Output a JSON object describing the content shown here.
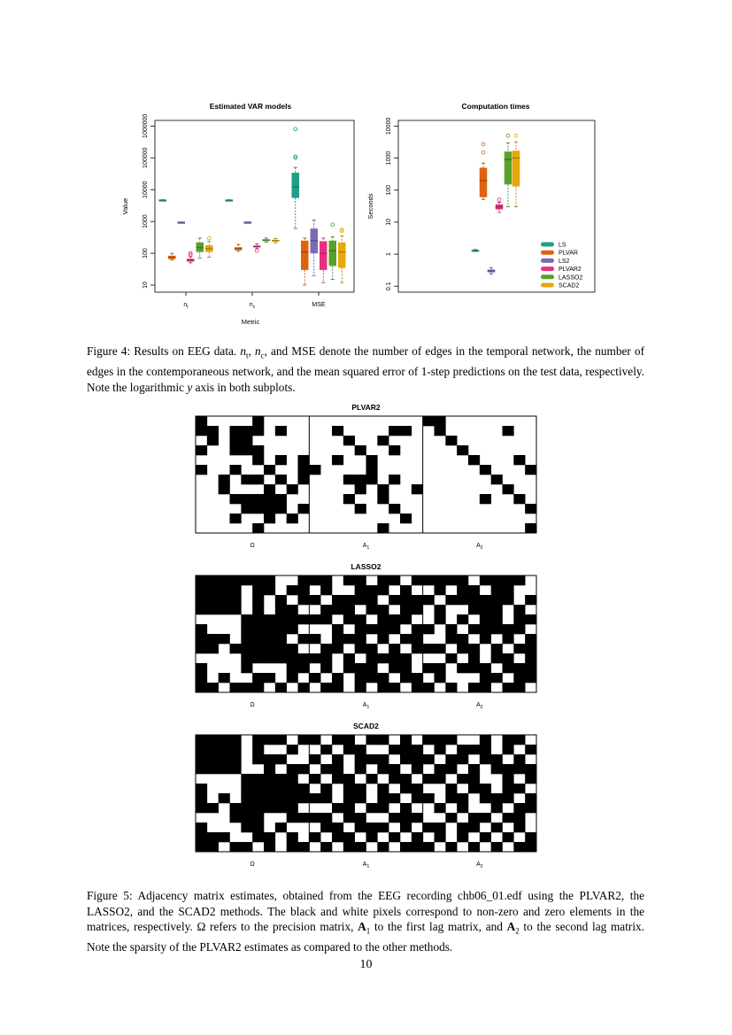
{
  "figure4": {
    "chart_data": [
      {
        "type": "box",
        "title": "Estimated VAR models",
        "xlabel": "Metric",
        "ylabel": "Value",
        "yscale": "log",
        "ylim": [
          6,
          1500000
        ],
        "yticks": [
          {
            "value": 10,
            "label": "10"
          },
          {
            "value": 100,
            "label": "100"
          },
          {
            "value": 1000,
            "label": "1000"
          },
          {
            "value": 10000,
            "label": "10000"
          },
          {
            "value": 100000,
            "label": "100000"
          },
          {
            "value": 1000000,
            "label": "1000000"
          }
        ],
        "groups": [
          {
            "label_main": "n",
            "label_sub": "t",
            "boxes": [
              {
                "method": "LS",
                "median": 4700,
                "q1": 4600,
                "q3": 4800,
                "whisker_low": 4600,
                "whisker_high": 4800,
                "outliers": []
              },
              {
                "method": "PLVAR",
                "median": 75,
                "q1": 66,
                "q3": 84,
                "whisker_low": 62,
                "whisker_high": 100,
                "outliers": []
              },
              {
                "method": "LS2",
                "median": 950,
                "q1": 940,
                "q3": 960,
                "whisker_low": 940,
                "whisker_high": 960,
                "outliers": []
              },
              {
                "method": "PLVAR2",
                "median": 62,
                "q1": 55,
                "q3": 67,
                "whisker_low": 50,
                "whisker_high": 78,
                "outliers": [
                  90,
                  100
                ]
              },
              {
                "method": "LASSO2",
                "median": 150,
                "q1": 110,
                "q3": 220,
                "whisker_low": 70,
                "whisker_high": 300,
                "outliers": []
              },
              {
                "method": "SCAD2",
                "median": 140,
                "q1": 110,
                "q3": 180,
                "whisker_low": 75,
                "whisker_high": 240,
                "outliers": [
                  300
                ]
              }
            ]
          },
          {
            "label_main": "n",
            "label_sub": "c",
            "boxes": [
              {
                "method": "LS",
                "median": 4700,
                "q1": 4600,
                "q3": 4800,
                "whisker_low": 4600,
                "whisker_high": 4800,
                "outliers": []
              },
              {
                "method": "PLVAR",
                "median": 140,
                "q1": 125,
                "q3": 155,
                "whisker_low": 115,
                "whisker_high": 190,
                "outliers": []
              },
              {
                "method": "LS2",
                "median": 950,
                "q1": 940,
                "q3": 960,
                "whisker_low": 940,
                "whisker_high": 960,
                "outliers": []
              },
              {
                "method": "PLVAR2",
                "median": 165,
                "q1": 155,
                "q3": 175,
                "whisker_low": 145,
                "whisker_high": 200,
                "outliers": [
                  120
                ]
              },
              {
                "method": "LASSO2",
                "median": 260,
                "q1": 245,
                "q3": 275,
                "whisker_low": 225,
                "whisker_high": 300,
                "outliers": []
              },
              {
                "method": "SCAD2",
                "median": 250,
                "q1": 235,
                "q3": 265,
                "whisker_low": 215,
                "whisker_high": 290,
                "outliers": []
              }
            ]
          },
          {
            "label_main": "MSE",
            "label_sub": "",
            "boxes": [
              {
                "method": "LS",
                "median": 12000,
                "q1": 5500,
                "q3": 34000,
                "whisker_low": 600,
                "whisker_high": 50000,
                "outliers": [
                  100000,
                  110000,
                  800000
                ]
              },
              {
                "method": "PLVAR",
                "median": 110,
                "q1": 30,
                "q3": 250,
                "whisker_low": 10,
                "whisker_high": 300,
                "outliers": []
              },
              {
                "method": "LS2",
                "median": 250,
                "q1": 100,
                "q3": 600,
                "whisker_low": 20,
                "whisker_high": 1100,
                "outliers": []
              },
              {
                "method": "PLVAR2",
                "median": 100,
                "q1": 30,
                "q3": 240,
                "whisker_low": 12,
                "whisker_high": 300,
                "outliers": []
              },
              {
                "method": "LASSO2",
                "median": 120,
                "q1": 40,
                "q3": 250,
                "whisker_low": 15,
                "whisker_high": 330,
                "outliers": [
                  800
                ]
              },
              {
                "method": "SCAD2",
                "median": 110,
                "q1": 35,
                "q3": 220,
                "whisker_low": 12,
                "whisker_high": 350,
                "outliers": [
                  500,
                  550
                ]
              }
            ]
          }
        ]
      },
      {
        "type": "box",
        "title": "Computation times",
        "xlabel": "",
        "ylabel": "Seconds",
        "yscale": "log",
        "ylim": [
          0.065,
          15000
        ],
        "yticks": [
          {
            "value": 0.1,
            "label": "0.1"
          },
          {
            "value": 1,
            "label": "1"
          },
          {
            "value": 10,
            "label": "10"
          },
          {
            "value": 100,
            "label": "100"
          },
          {
            "value": 1000,
            "label": "1000"
          },
          {
            "value": 10000,
            "label": "10000"
          }
        ],
        "boxes": [
          {
            "method": "LS",
            "median": 1.3,
            "q1": 1.25,
            "q3": 1.35,
            "whisker_low": 1.2,
            "whisker_high": 1.4,
            "outliers": []
          },
          {
            "method": "PLVAR",
            "median": 200,
            "q1": 60,
            "q3": 500,
            "whisker_low": 50,
            "whisker_high": 700,
            "outliers": [
              1500,
              2700
            ]
          },
          {
            "method": "LS2",
            "median": 0.3,
            "q1": 0.27,
            "q3": 0.33,
            "whisker_low": 0.24,
            "whisker_high": 0.38,
            "outliers": []
          },
          {
            "method": "PLVAR2",
            "median": 30,
            "q1": 25,
            "q3": 36,
            "whisker_low": 20,
            "whisker_high": 42,
            "outliers": [
              50
            ]
          },
          {
            "method": "LASSO2",
            "median": 900,
            "q1": 150,
            "q3": 1600,
            "whisker_low": 30,
            "whisker_high": 3000,
            "outliers": [
              5000
            ]
          },
          {
            "method": "SCAD2",
            "median": 1000,
            "q1": 130,
            "q3": 1700,
            "whisker_low": 30,
            "whisker_high": 3200,
            "outliers": [
              5000
            ]
          }
        ],
        "legend_position": "bottom-right",
        "legend": [
          {
            "name": "LS",
            "color": "#1f9e89"
          },
          {
            "name": "PLVAR",
            "color": "#e0620d"
          },
          {
            "name": "LS2",
            "color": "#7b6bb5"
          },
          {
            "name": "PLVAR2",
            "color": "#e6307f"
          },
          {
            "name": "LASSO2",
            "color": "#5aa02c"
          },
          {
            "name": "SCAD2",
            "color": "#e6a80b"
          }
        ]
      }
    ],
    "caption": {
      "prefix": "Figure 4: Results on EEG data. ",
      "nt_main": "n",
      "nt_sub": "t",
      "sep": ", ",
      "nc_main": "n",
      "nc_sub": "c",
      "text1": ", and MSE denote the number of edges in the temporal network, the number of edges in the contemporaneous network, and the mean squared error of 1-step predictions on the test data, respectively. Note the logarithmic ",
      "y_italic": "y",
      "text2": " axis in both subplots."
    }
  },
  "figure5": {
    "panels": [
      {
        "title": "PLVAR2",
        "labels": [
          {
            "main": "Ω",
            "sub": ""
          },
          {
            "main": "A",
            "sub": "1"
          },
          {
            "main": "A",
            "sub": "2"
          }
        ],
        "matrices": [
          [
            "1000010000",
            "1101110100",
            "0101100000",
            "1001110000",
            "0000010101",
            "1001001001",
            "0010110101",
            "0010001010",
            "0001111100",
            "0000111101",
            "0001001010",
            "0000010000"
          ],
          [
            "0000000000",
            "0010000110",
            "0001001000",
            "0000100100",
            "0010010000",
            "1000010000",
            "0001110100",
            "0000101001",
            "0001001000",
            "0000100100",
            "0000000010",
            "0000001000"
          ],
          [
            "1100000000",
            "0100000100",
            "0010000000",
            "0001000000",
            "0000100010",
            "0000010001",
            "0000001000",
            "0000000100",
            "0000010010",
            "0000000001",
            "0000000000",
            "0000000001"
          ]
        ]
      },
      {
        "title": "LASSO2",
        "labels": [
          {
            "main": "Ω",
            "sub": ""
          },
          {
            "main": "A",
            "sub": "1"
          },
          {
            "main": "A",
            "sub": "2"
          }
        ],
        "matrices": [
          [
            "1111111001",
            "1111011011",
            "1111010101",
            "1111010110",
            "0000111111",
            "1000111110",
            "1110111101",
            "1101111110",
            "0000111111",
            "1000100011",
            "1010011010",
            "1101110101"
          ],
          [
            "1101101101",
            "0100111010",
            "1011110111",
            "0111011011",
            "1101101110",
            "0010111101",
            "1011101011",
            "0110110101",
            "1101011110",
            "0101110110",
            "1010111011",
            "0110101101"
          ],
          [
            "1111011110",
            "0101101100",
            "1011111101",
            "0100111010",
            "0101011011",
            "1010111110",
            "0011010101",
            "1101101011",
            "0010101101",
            "1101110111",
            "0100011011",
            "1010110110"
          ]
        ]
      },
      {
        "title": "SCAD2",
        "labels": [
          {
            "main": "Ω",
            "sub": ""
          },
          {
            "main": "A",
            "sub": "1"
          },
          {
            "main": "A",
            "sub": "2"
          }
        ],
        "matrices": [
          [
            "1111011101",
            "1111010010",
            "1111011100",
            "1111001011",
            "0000111110",
            "1000111111",
            "1010111111",
            "1101111110",
            "0001110011",
            "1000110100",
            "1110011010",
            "1101101011"
          ],
          [
            "1011011010",
            "0101100111",
            "1010111011",
            "0110101101",
            "1011010110",
            "0101101011",
            "1101101101",
            "0011011010",
            "1101100111",
            "0110111010",
            "1011010101",
            "0101101011"
          ],
          [
            "1110010110",
            "0101110101",
            "1011011010",
            "0110101111",
            "1101100101",
            "0010110110",
            "1011011101",
            "0101001011",
            "0010110110",
            "1101101010",
            "0101010101",
            "1010101011"
          ]
        ]
      }
    ],
    "caption": {
      "prefix": "Figure 5: Adjacency matrix estimates, obtained from the EEG recording chb06_01.edf using the PLVAR2, the LASSO2, and the SCAD2 methods. The black and white pixels correspond to non-zero and zero elements in the matrices, respectively. ",
      "omega": "Ω",
      "text1": " refers to the precision matrix, ",
      "a1_main": "A",
      "a1_sub": "1",
      "text2": " to the first lag matrix, and ",
      "a2_main": "A",
      "a2_sub": "2",
      "text3": " to the second lag matrix. Note the sparsity of the PLVAR2 estimates as compared to the other methods."
    }
  },
  "page_number": "10"
}
